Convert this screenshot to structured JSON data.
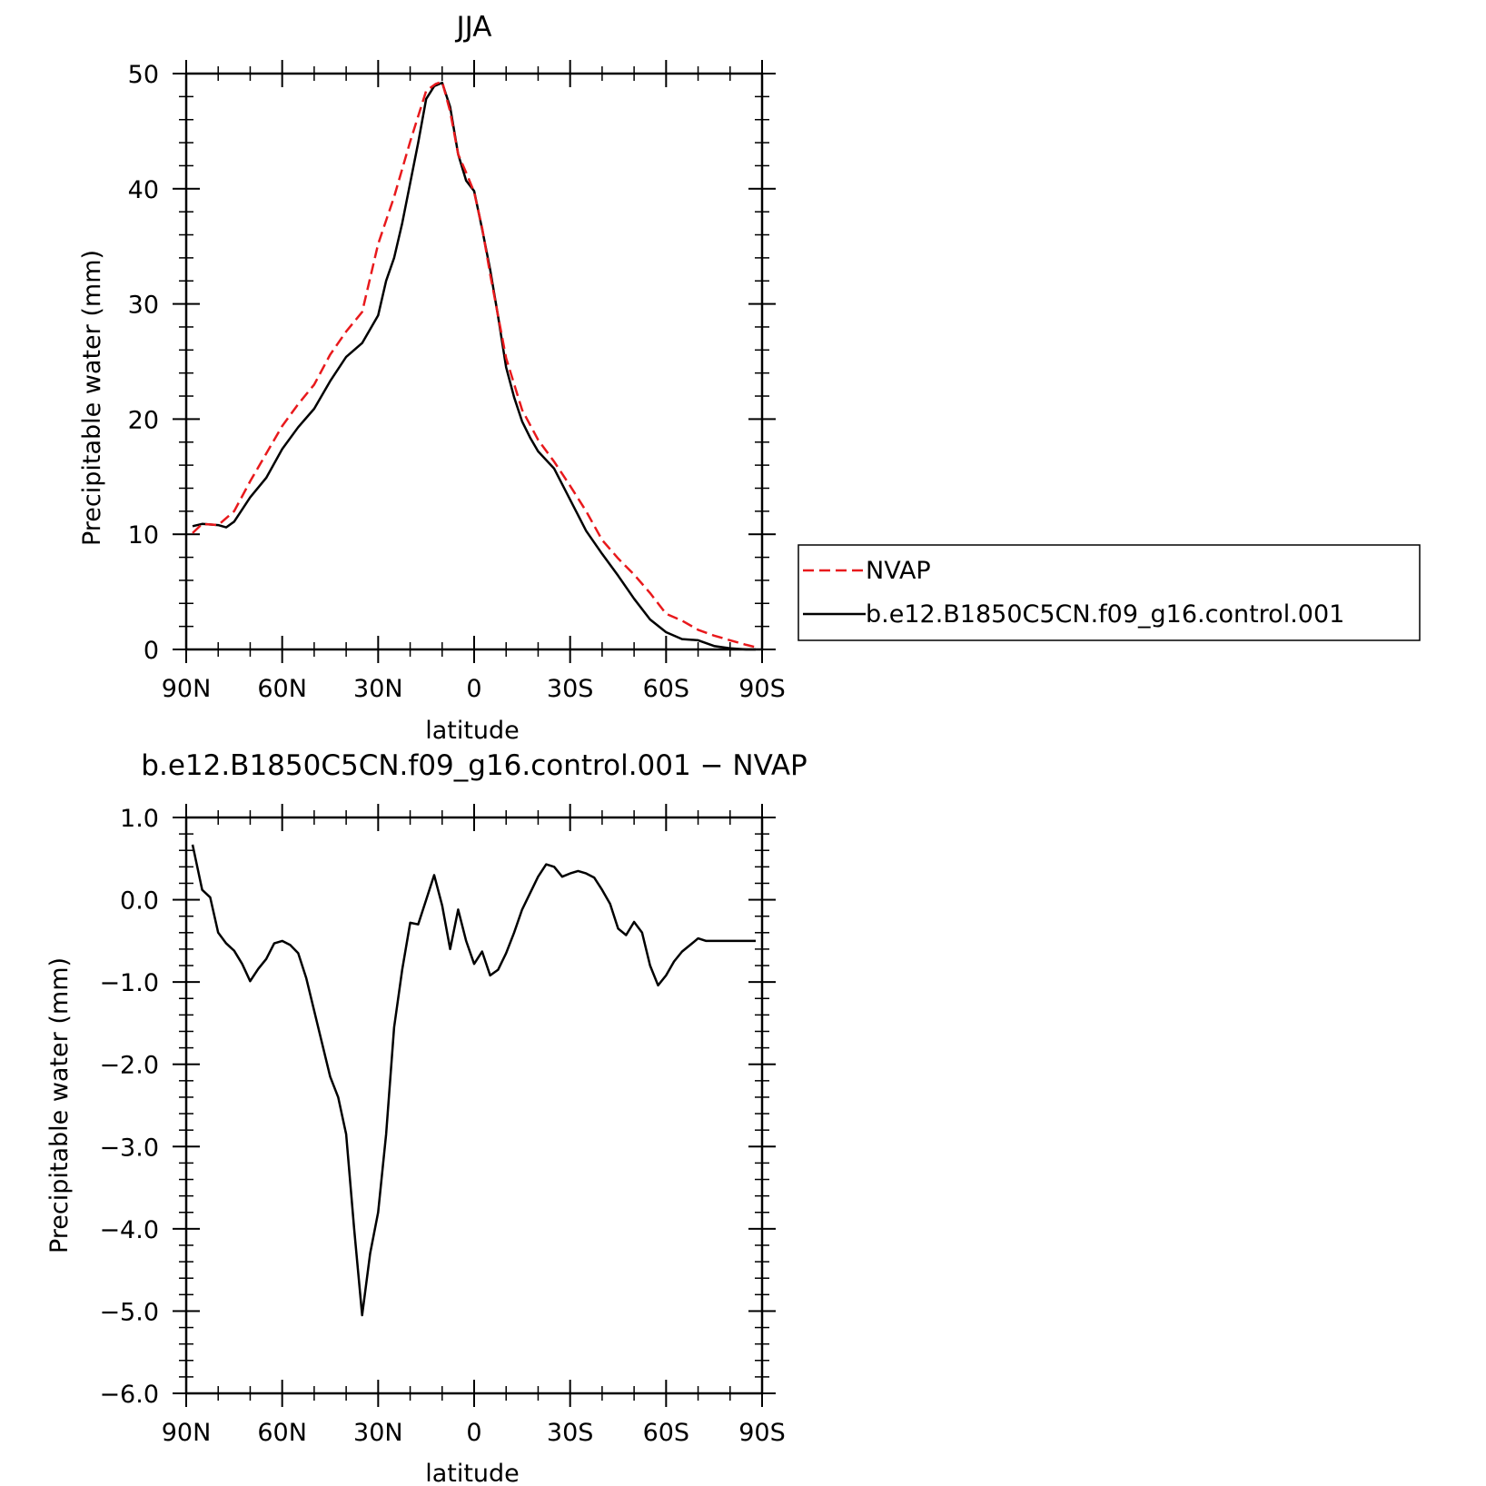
{
  "chart_data": [
    {
      "type": "line",
      "title": "JJA",
      "xlabel": "latitude",
      "ylabel": "Precipitable water (mm)",
      "xlim": [
        90,
        -90
      ],
      "ylim": [
        0,
        50
      ],
      "x_ticks": [
        {
          "value": 90,
          "label": "90N"
        },
        {
          "value": 60,
          "label": "60N"
        },
        {
          "value": 30,
          "label": "30N"
        },
        {
          "value": 0,
          "label": "0"
        },
        {
          "value": -30,
          "label": "30S"
        },
        {
          "value": -60,
          "label": "60S"
        },
        {
          "value": -90,
          "label": "90S"
        }
      ],
      "y_ticks": [
        {
          "value": 0,
          "label": "0"
        },
        {
          "value": 10,
          "label": "10"
        },
        {
          "value": 20,
          "label": "20"
        },
        {
          "value": 30,
          "label": "30"
        },
        {
          "value": 40,
          "label": "40"
        },
        {
          "value": 50,
          "label": "50"
        }
      ],
      "legend_position": "right",
      "series": [
        {
          "name": "NVAP",
          "color": "#e8191c",
          "dash": "dashed",
          "x": [
            88,
            85,
            80,
            75,
            70,
            65,
            60,
            55,
            50,
            45,
            40,
            35,
            30,
            25,
            20,
            15,
            12,
            10,
            7.5,
            5,
            2.5,
            0,
            -2.5,
            -5,
            -10,
            -15,
            -20,
            -25,
            -30,
            -35,
            -40,
            -45,
            -50,
            -55,
            -60,
            -65,
            -70,
            -75,
            -80,
            -85,
            -88
          ],
          "y": [
            10.1,
            10.9,
            10.8,
            12,
            14.6,
            17,
            19.4,
            21.3,
            23,
            25.6,
            27.6,
            29.3,
            35.2,
            39.3,
            44.1,
            48.5,
            49.1,
            49.3,
            46.7,
            43,
            41.4,
            39.7,
            36.6,
            32.6,
            25.3,
            20.8,
            18.2,
            16.3,
            14.2,
            12,
            9.5,
            7.9,
            6.5,
            4.9,
            3.1,
            2.5,
            1.7,
            1.2,
            0.8,
            0.4,
            0.2
          ]
        },
        {
          "name": "b.e12.B1850C5CN.f09_g16.control.001",
          "color": "#000000",
          "dash": "solid",
          "x": [
            88,
            85,
            80,
            77.5,
            75,
            70,
            65,
            60,
            55,
            50,
            45,
            40,
            35,
            30,
            27.5,
            25,
            22.5,
            20,
            17.5,
            15,
            12.5,
            10,
            7.5,
            5,
            2.5,
            0,
            -2.5,
            -5,
            -7.5,
            -10,
            -12.5,
            -15,
            -17.5,
            -20,
            -25,
            -30,
            -35,
            -40,
            -45,
            -50,
            -55,
            -60,
            -65,
            -70,
            -75,
            -80,
            -85,
            -88
          ],
          "y": [
            10.7,
            10.9,
            10.8,
            10.6,
            11.1,
            13.2,
            14.9,
            17.4,
            19.3,
            20.9,
            23.3,
            25.4,
            26.6,
            29,
            32,
            34,
            37,
            40.5,
            44,
            47.8,
            48.9,
            49.2,
            47.1,
            43,
            40.7,
            39.8,
            36.5,
            33,
            28.9,
            24.5,
            21.9,
            19.8,
            18.4,
            17.2,
            15.7,
            13,
            10.3,
            8.3,
            6.4,
            4.4,
            2.6,
            1.5,
            0.9,
            0.8,
            0.3,
            0.1,
            0,
            0
          ]
        }
      ]
    },
    {
      "type": "line",
      "title": "b.e12.B1850C5CN.f09_g16.control.001 − NVAP",
      "xlabel": "latitude",
      "ylabel": "Precipitable water (mm)",
      "xlim": [
        90,
        -90
      ],
      "ylim": [
        -6,
        1
      ],
      "x_ticks": [
        {
          "value": 90,
          "label": "90N"
        },
        {
          "value": 60,
          "label": "60N"
        },
        {
          "value": 30,
          "label": "30N"
        },
        {
          "value": 0,
          "label": "0"
        },
        {
          "value": -30,
          "label": "30S"
        },
        {
          "value": -60,
          "label": "60S"
        },
        {
          "value": -90,
          "label": "90S"
        }
      ],
      "y_ticks": [
        {
          "value": 1,
          "label": "1.0"
        },
        {
          "value": 0,
          "label": "0.0"
        },
        {
          "value": -1,
          "label": "−1.0"
        },
        {
          "value": -2,
          "label": "−2.0"
        },
        {
          "value": -3,
          "label": "−3.0"
        },
        {
          "value": -4,
          "label": "−4.0"
        },
        {
          "value": -5,
          "label": "−5.0"
        },
        {
          "value": -6,
          "label": "−6.0"
        }
      ],
      "series": [
        {
          "color": "#000000",
          "dash": "solid",
          "x": [
            88,
            85,
            82.5,
            80,
            77.5,
            75,
            72.5,
            70,
            67.5,
            65,
            62.5,
            60,
            57.5,
            55,
            52.5,
            50,
            47.5,
            45,
            42.5,
            40,
            37.5,
            35,
            32.5,
            30,
            27.5,
            25,
            22.5,
            20,
            17.5,
            15,
            12.5,
            10,
            7.5,
            5,
            2.5,
            0,
            -2.5,
            -5,
            -7.5,
            -10,
            -12.5,
            -15,
            -17.5,
            -20,
            -22.5,
            -25,
            -27.5,
            -30,
            -32.5,
            -35,
            -37.5,
            -40,
            -42.5,
            -45,
            -47.5,
            -50,
            -52.5,
            -55,
            -57.5,
            -60,
            -62.5,
            -65,
            -67.5,
            -70,
            -72.5,
            -75,
            -77.5,
            -80,
            -82.5,
            -85,
            -88
          ],
          "y": [
            0.67,
            0.12,
            0.03,
            -0.4,
            -0.53,
            -0.62,
            -0.78,
            -0.99,
            -0.84,
            -0.72,
            -0.53,
            -0.5,
            -0.55,
            -0.65,
            -0.95,
            -1.35,
            -1.75,
            -2.15,
            -2.4,
            -2.85,
            -4.0,
            -5.05,
            -4.3,
            -3.8,
            -2.85,
            -1.55,
            -0.85,
            -0.28,
            -0.3,
            0.0,
            0.3,
            -0.07,
            -0.6,
            -0.12,
            -0.5,
            -0.78,
            -0.63,
            -0.92,
            -0.85,
            -0.65,
            -0.4,
            -0.12,
            0.08,
            0.28,
            0.43,
            0.4,
            0.28,
            0.32,
            0.35,
            0.32,
            0.27,
            0.12,
            -0.05,
            -0.35,
            -0.43,
            -0.27,
            -0.4,
            -0.8,
            -1.04,
            -0.92,
            -0.75,
            -0.63,
            -0.55,
            -0.47,
            -0.5,
            -0.5,
            -0.5,
            -0.5,
            -0.5,
            -0.5,
            -0.5
          ]
        }
      ]
    }
  ]
}
